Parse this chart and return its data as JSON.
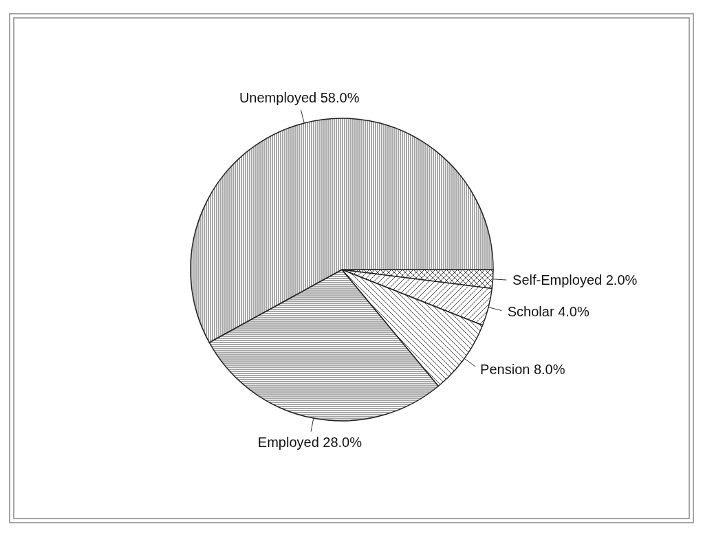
{
  "chart_data": {
    "type": "pie",
    "categories": [
      "Self-Employed",
      "Scholar",
      "Pension",
      "Employed",
      "Unemployed"
    ],
    "values": [
      2,
      4,
      8,
      28,
      58
    ],
    "value_labels": [
      "2.0%",
      "4.0%",
      "8.0%",
      "28.0%",
      "58.0%"
    ],
    "colors": [
      "#222222",
      "#222222",
      "#222222",
      "#222222",
      "#222222"
    ]
  }
}
